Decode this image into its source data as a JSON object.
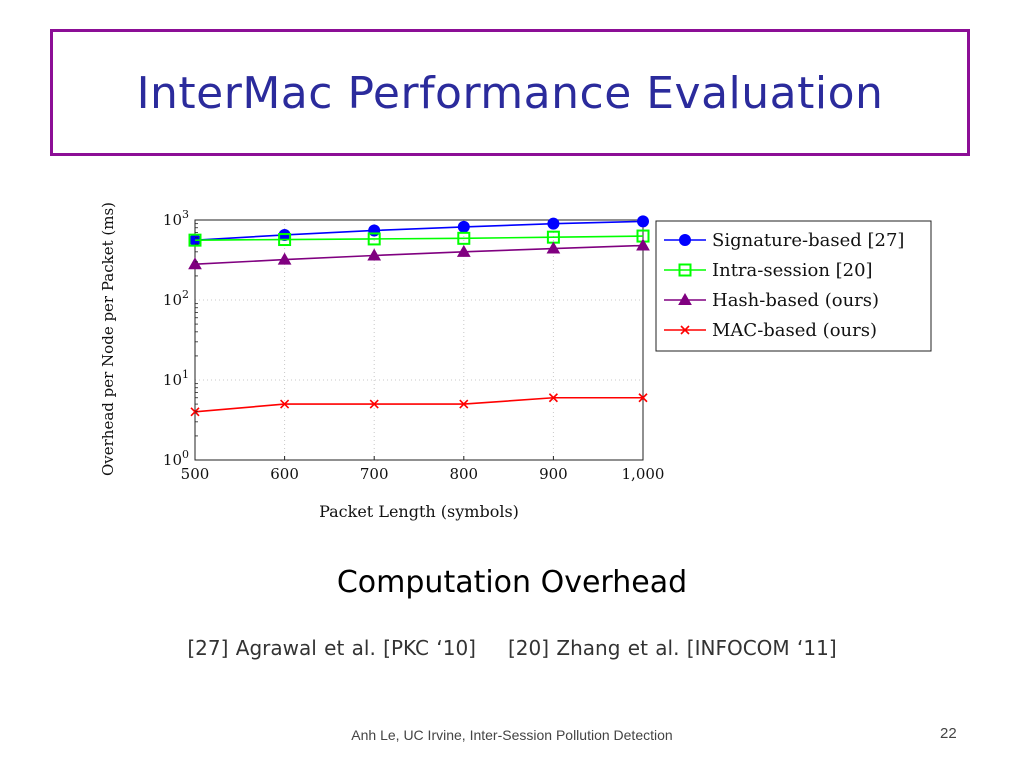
{
  "slide": {
    "title": "InterMac Performance Evaluation",
    "caption": "Computation Overhead",
    "ref1": "[27] Agrawal et al. [PKC ‘10]",
    "ref2": "[20] Zhang et al. [INFOCOM ‘11]",
    "footer": "Anh Le,  UC Irvine, Inter-Session Pollution Detection",
    "page_number": "22"
  },
  "colors": {
    "title_border": "#8c0e96",
    "title_text": "#2b2b9c"
  },
  "chart_data": {
    "type": "line",
    "xlabel": "Packet Length (symbols)",
    "ylabel": "Overhead per Node per Packet (ms)",
    "yscale": "log",
    "ylim": [
      1,
      1000
    ],
    "x": [
      500,
      600,
      700,
      800,
      900,
      1000
    ],
    "x_tick_labels": [
      "500",
      "600",
      "700",
      "800",
      "900",
      "1,000"
    ],
    "y_ticks": [
      1,
      10,
      100,
      1000
    ],
    "y_tick_bases": [
      "10",
      "10",
      "10",
      "10"
    ],
    "y_tick_exponents": [
      "0",
      "1",
      "2",
      "3"
    ],
    "grid": true,
    "legend_position": "top-right",
    "series": [
      {
        "name": "Signature-based [27]",
        "color": "#0000ff",
        "marker": "circle",
        "values": [
          560,
          650,
          740,
          820,
          900,
          960
        ]
      },
      {
        "name": "Intra-session [20]",
        "color": "#00ff00",
        "marker": "square",
        "values": [
          560,
          570,
          580,
          590,
          610,
          630
        ]
      },
      {
        "name": "Hash-based (ours)",
        "color": "#800080",
        "marker": "triangle",
        "values": [
          280,
          320,
          360,
          400,
          440,
          480
        ]
      },
      {
        "name": "MAC-based (ours)",
        "color": "#ff0000",
        "marker": "cross",
        "values": [
          4,
          5,
          5,
          5,
          6,
          6
        ]
      }
    ]
  }
}
